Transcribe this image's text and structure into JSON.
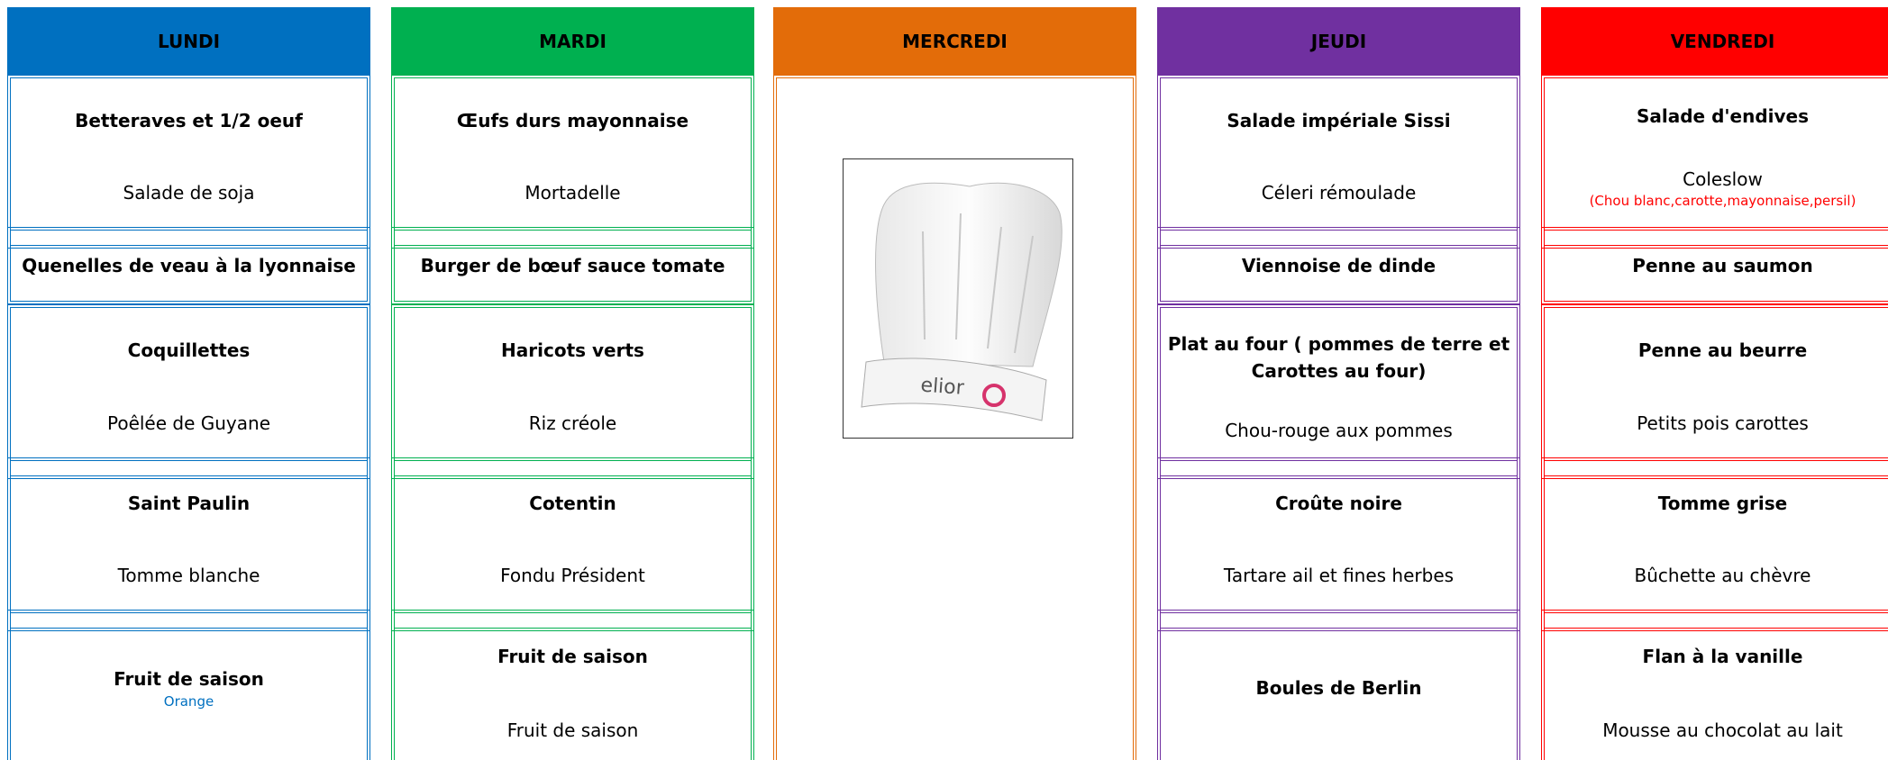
{
  "days": [
    {
      "name": "LUNDI",
      "color": "#0070c0",
      "cells": [
        [
          [
            {
              "text": "Betteraves et 1/2 oeuf",
              "style": "bold"
            }
          ],
          [
            {
              "text": "Salade de soja",
              "style": "normal"
            }
          ]
        ],
        [
          [
            {
              "text": "Quenelles de veau à la lyonnaise",
              "style": "bold"
            }
          ]
        ],
        [
          [
            {
              "text": "Coquillettes",
              "style": "bold"
            }
          ],
          [
            {
              "text": "Poêlée de Guyane",
              "style": "normal"
            }
          ]
        ],
        [
          [
            {
              "text": "Saint Paulin",
              "style": "bold"
            }
          ],
          [
            {
              "text": "Tomme blanche",
              "style": "normal"
            }
          ]
        ],
        [
          [
            {
              "text": "Fruit de saison",
              "style": "bold"
            },
            {
              "text": "Orange",
              "style": "note"
            }
          ]
        ]
      ]
    },
    {
      "name": "MARDI",
      "color": "#00b050",
      "cells": [
        [
          [
            {
              "text": "Œufs durs mayonnaise",
              "style": "bold"
            }
          ],
          [
            {
              "text": "Mortadelle",
              "style": "normal"
            }
          ]
        ],
        [
          [
            {
              "text": "Burger de bœuf sauce tomate",
              "style": "bold"
            }
          ]
        ],
        [
          [
            {
              "text": "Haricots verts",
              "style": "bold"
            }
          ],
          [
            {
              "text": "Riz créole",
              "style": "normal"
            }
          ]
        ],
        [
          [
            {
              "text": "Cotentin",
              "style": "bold"
            }
          ],
          [
            {
              "text": "Fondu Président",
              "style": "normal"
            }
          ]
        ],
        [
          [
            {
              "text": "Fruit de saison",
              "style": "bold"
            }
          ],
          [
            {
              "text": "Fruit de saison",
              "style": "normal"
            }
          ]
        ]
      ]
    },
    {
      "name": "MERCREDI",
      "color": "#e36c09",
      "logo": "elior"
    },
    {
      "name": "JEUDI",
      "color": "#7030a0",
      "cells": [
        [
          [
            {
              "text": "Salade impériale Sissi",
              "style": "bold"
            }
          ],
          [
            {
              "text": "Céleri rémoulade",
              "style": "normal"
            }
          ]
        ],
        [
          [
            {
              "text": "Viennoise de dinde",
              "style": "bold"
            }
          ]
        ],
        [
          [
            {
              "text": "Plat au four ( pommes de terre et Carottes au four)",
              "style": "bold"
            }
          ],
          [
            {
              "text": "Chou-rouge aux pommes",
              "style": "normal"
            }
          ]
        ],
        [
          [
            {
              "text": "Croûte noire",
              "style": "bold"
            }
          ],
          [
            {
              "text": "Tartare ail et fines herbes",
              "style": "normal"
            }
          ]
        ],
        [
          [
            {
              "text": "Boules de Berlin",
              "style": "bold"
            }
          ]
        ]
      ]
    },
    {
      "name": "VENDREDI",
      "color": "#ff0000",
      "cells": [
        [
          [
            {
              "text": "Salade d'endives",
              "style": "bold"
            }
          ],
          [
            {
              "text": "Coleslow",
              "style": "normal"
            },
            {
              "text": "(Chou blanc,carotte,mayonnaise,persil)",
              "style": "note"
            }
          ]
        ],
        [
          [
            {
              "text": "Penne au saumon",
              "style": "bold"
            }
          ]
        ],
        [
          [
            {
              "text": "Penne au beurre",
              "style": "bold"
            }
          ],
          [
            {
              "text": "Petits pois carottes",
              "style": "normal"
            }
          ]
        ],
        [
          [
            {
              "text": "Tomme grise",
              "style": "bold"
            }
          ],
          [
            {
              "text": "Bûchette au chèvre",
              "style": "normal"
            }
          ]
        ],
        [
          [
            {
              "text": "Flan à la vanille",
              "style": "bold"
            }
          ],
          [
            {
              "text": "Mousse au chocolat au lait",
              "style": "normal"
            }
          ]
        ]
      ]
    }
  ]
}
